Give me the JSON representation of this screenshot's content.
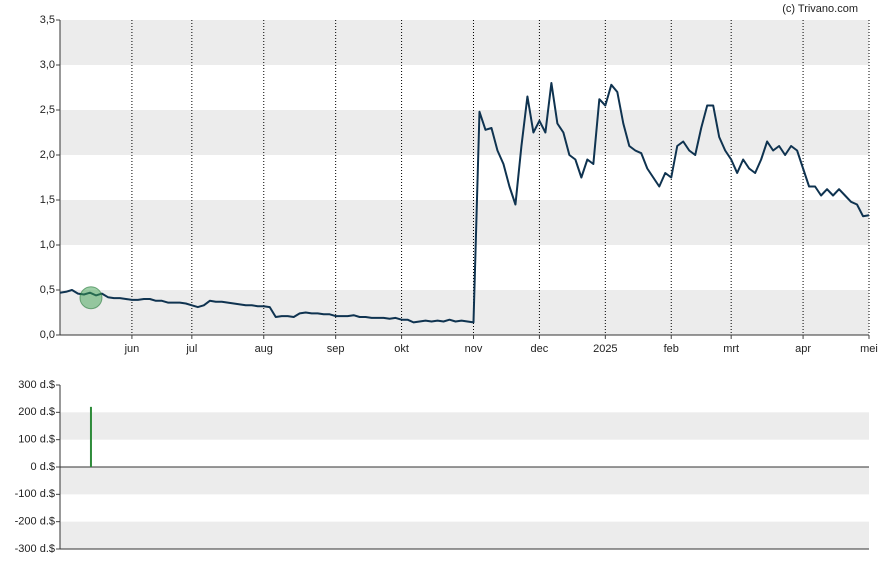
{
  "chart_data": [
    {
      "type": "line",
      "source": "(c) Trivano.com",
      "color": "#0f3350",
      "grid": true,
      "categories": [
        null,
        null,
        null,
        null,
        null,
        null,
        null,
        null,
        null,
        null,
        null,
        null,
        "jun",
        null,
        null,
        null,
        null,
        null,
        null,
        null,
        null,
        null,
        "jul",
        null,
        null,
        null,
        null,
        null,
        null,
        null,
        null,
        null,
        null,
        null,
        "aug",
        null,
        null,
        null,
        null,
        null,
        null,
        null,
        null,
        null,
        null,
        null,
        "sep",
        null,
        null,
        null,
        null,
        null,
        null,
        null,
        null,
        null,
        null,
        "okt",
        null,
        null,
        null,
        null,
        null,
        null,
        null,
        null,
        null,
        null,
        null,
        "nov",
        null,
        null,
        null,
        null,
        null,
        null,
        null,
        null,
        null,
        null,
        "dec",
        null,
        null,
        null,
        null,
        null,
        null,
        null,
        null,
        null,
        null,
        "2025",
        null,
        null,
        null,
        null,
        null,
        null,
        null,
        null,
        null,
        null,
        "feb",
        null,
        null,
        null,
        null,
        null,
        null,
        null,
        null,
        null,
        "mrt",
        null,
        null,
        null,
        null,
        null,
        null,
        null,
        null,
        null,
        null,
        null,
        "apr",
        null,
        null,
        null,
        null,
        null,
        null,
        null,
        null,
        null,
        null,
        "mei"
      ],
      "values": [
        0.47,
        0.48,
        0.5,
        0.46,
        0.45,
        0.47,
        0.44,
        0.46,
        0.42,
        0.41,
        0.41,
        0.4,
        0.39,
        0.39,
        0.4,
        0.4,
        0.38,
        0.38,
        0.36,
        0.36,
        0.36,
        0.35,
        0.33,
        0.31,
        0.33,
        0.38,
        0.37,
        0.37,
        0.36,
        0.35,
        0.34,
        0.33,
        0.33,
        0.32,
        0.32,
        0.31,
        0.2,
        0.21,
        0.21,
        0.2,
        0.24,
        0.25,
        0.24,
        0.24,
        0.23,
        0.23,
        0.21,
        0.21,
        0.21,
        0.22,
        0.2,
        0.2,
        0.19,
        0.19,
        0.19,
        0.18,
        0.19,
        0.17,
        0.17,
        0.14,
        0.15,
        0.16,
        0.15,
        0.16,
        0.15,
        0.17,
        0.15,
        0.16,
        0.15,
        0.14,
        2.48,
        2.28,
        2.3,
        2.05,
        1.9,
        1.65,
        1.45,
        2.1,
        2.65,
        2.25,
        2.38,
        2.25,
        2.8,
        2.35,
        2.25,
        2.0,
        1.95,
        1.75,
        1.95,
        1.9,
        2.62,
        2.55,
        2.78,
        2.7,
        2.35,
        2.1,
        2.05,
        2.02,
        1.85,
        1.75,
        1.65,
        1.8,
        1.75,
        2.1,
        2.15,
        2.05,
        2.0,
        2.3,
        2.55,
        2.55,
        2.2,
        2.05,
        1.95,
        1.8,
        1.95,
        1.85,
        1.8,
        1.95,
        2.15,
        2.05,
        2.1,
        2.0,
        2.1,
        2.05,
        1.85,
        1.65,
        1.65,
        1.55,
        1.62,
        1.55,
        1.62,
        1.55,
        1.48,
        1.45,
        1.32,
        1.33
      ],
      "ylim": [
        0,
        3.5
      ],
      "yticks": [
        {
          "value": 0,
          "label": "0,0"
        },
        {
          "value": 0.5,
          "label": "0,5"
        },
        {
          "value": 1,
          "label": "1,0"
        },
        {
          "value": 1.5,
          "label": "1,5"
        },
        {
          "value": 2,
          "label": "2,0"
        },
        {
          "value": 2.5,
          "label": "2,5"
        },
        {
          "value": 3,
          "label": "3,0"
        },
        {
          "value": 3.5,
          "label": "3,5"
        }
      ]
    },
    {
      "type": "bar",
      "color": "#2e8b3a",
      "values": [
        null,
        null,
        null,
        null,
        null,
        220,
        null,
        null,
        null,
        null,
        null,
        null,
        null,
        null,
        null,
        null,
        null,
        null,
        null,
        null,
        null,
        null,
        null,
        null,
        null,
        null,
        null,
        null,
        null,
        null,
        null,
        null,
        null,
        null,
        null,
        null,
        null,
        null,
        null,
        null,
        null,
        null,
        null,
        null,
        null,
        null,
        null,
        null,
        null,
        null,
        null,
        null,
        null,
        null,
        null,
        null,
        null,
        null,
        null,
        null,
        null,
        null,
        null,
        null,
        null,
        null,
        null,
        null,
        null,
        null,
        null,
        null,
        null,
        null,
        null,
        null,
        null,
        null,
        null,
        null,
        null,
        null,
        null,
        null,
        null,
        null,
        null,
        null,
        null,
        null,
        null,
        null,
        null,
        null,
        null,
        null,
        null,
        null,
        null,
        null,
        null,
        null,
        null,
        null,
        null,
        null,
        null,
        null,
        null,
        null,
        null,
        null,
        null,
        null,
        null,
        null,
        null,
        null,
        null,
        null,
        null,
        null,
        null,
        null,
        null,
        null,
        null,
        null,
        null,
        null,
        null,
        null,
        null,
        null,
        null,
        null
      ],
      "ylim": [
        -300,
        300
      ],
      "yticks": [
        {
          "value": -300,
          "label": "-300 d.$"
        },
        {
          "value": -200,
          "label": "-200 d.$"
        },
        {
          "value": -100,
          "label": "-100 d.$"
        },
        {
          "value": 0,
          "label": "0 d.$"
        },
        {
          "value": 100,
          "label": "100 d.$"
        },
        {
          "value": 200,
          "label": "200 d.$"
        },
        {
          "value": 300,
          "label": "300 d.$"
        }
      ]
    }
  ]
}
